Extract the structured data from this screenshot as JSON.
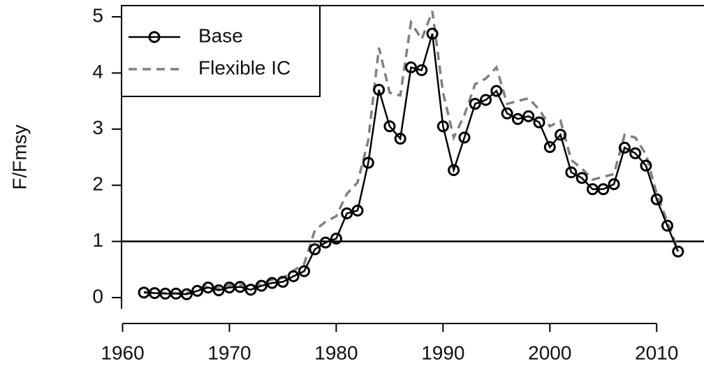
{
  "chart_data": {
    "type": "line",
    "y_label": "F/Fmsy",
    "x": [
      1962,
      1963,
      1964,
      1965,
      1966,
      1967,
      1968,
      1969,
      1970,
      1971,
      1972,
      1973,
      1974,
      1975,
      1976,
      1977,
      1978,
      1979,
      1980,
      1981,
      1982,
      1983,
      1984,
      1985,
      1986,
      1987,
      1988,
      1989,
      1990,
      1991,
      1992,
      1993,
      1994,
      1995,
      1996,
      1997,
      1998,
      1999,
      2000,
      2001,
      2002,
      2003,
      2004,
      2005,
      2006,
      2007,
      2008,
      2009,
      2010,
      2011,
      2012
    ],
    "series": [
      {
        "name": "Base",
        "color": "#000000",
        "style": "solid-circles",
        "values": [
          0.09,
          0.08,
          0.07,
          0.07,
          0.06,
          0.12,
          0.18,
          0.13,
          0.18,
          0.19,
          0.14,
          0.21,
          0.26,
          0.28,
          0.38,
          0.47,
          0.86,
          0.98,
          1.05,
          1.5,
          1.55,
          2.4,
          3.7,
          3.05,
          2.83,
          4.1,
          4.05,
          4.7,
          3.05,
          2.27,
          2.85,
          3.45,
          3.52,
          3.68,
          3.28,
          3.18,
          3.23,
          3.12,
          2.68,
          2.9,
          2.23,
          2.13,
          1.93,
          1.93,
          2.02,
          2.67,
          2.57,
          2.35,
          1.75,
          1.28,
          0.82
        ]
      },
      {
        "name": "Flexible IC",
        "color": "#808080",
        "style": "dashed",
        "values": [
          0.1,
          0.09,
          0.08,
          0.08,
          0.08,
          0.15,
          0.22,
          0.16,
          0.22,
          0.23,
          0.18,
          0.25,
          0.32,
          0.35,
          0.48,
          0.6,
          1.2,
          1.35,
          1.45,
          1.85,
          2.05,
          2.8,
          4.45,
          3.65,
          3.6,
          4.9,
          4.6,
          5.1,
          3.65,
          2.85,
          3.25,
          3.8,
          3.9,
          4.1,
          3.45,
          3.5,
          3.55,
          3.35,
          3.05,
          3.15,
          2.45,
          2.3,
          2.1,
          2.15,
          2.2,
          2.9,
          2.85,
          2.55,
          1.85,
          1.35,
          0.85
        ]
      }
    ],
    "hline": 1,
    "xlim": [
      1959.9,
      2014.3
    ],
    "xticks": [
      1960,
      1970,
      1980,
      1990,
      2000,
      2010
    ],
    "ylim": [
      -0.2,
      5.2
    ],
    "yticks": [
      0,
      1,
      2,
      3,
      4,
      5
    ],
    "legend": "top-left"
  }
}
